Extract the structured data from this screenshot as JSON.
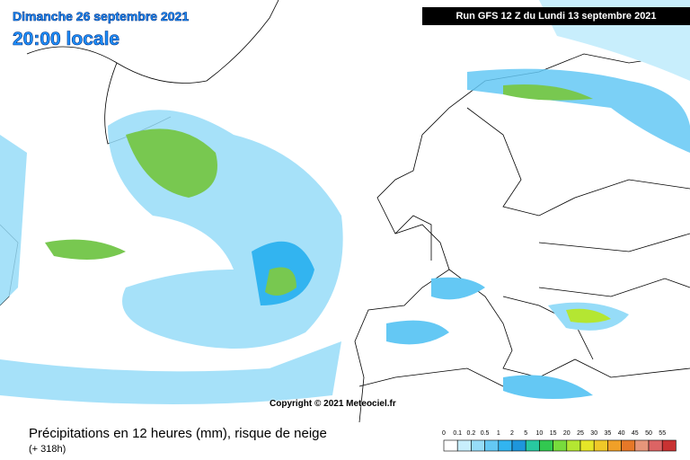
{
  "header": {
    "title": "Dimanche 26 septembre 2021",
    "time": "20:00 locale",
    "run": "Run GFS 12 Z du Lundi 13 septembre 2021",
    "copyright": "Copyright © 2021 Meteociel.fr"
  },
  "footer": {
    "caption": "Précipitations en 12 heures (mm), risque de neige",
    "lead": "(+ 318h)"
  },
  "legend": {
    "labels": [
      0,
      0.1,
      0.2,
      0.5,
      1,
      2,
      5,
      10,
      15,
      20,
      25,
      30,
      35,
      40,
      45,
      50,
      55
    ],
    "colors": [
      "#ffffff",
      "#c8eefc",
      "#96dcf8",
      "#64c8f4",
      "#32b4f0",
      "#1e96dc",
      "#28c8a0",
      "#32c850",
      "#78dc3c",
      "#b4e632",
      "#e6e628",
      "#f0c828",
      "#f0a028",
      "#e67828",
      "#e6967a",
      "#dc6464",
      "#c83232"
    ]
  }
}
